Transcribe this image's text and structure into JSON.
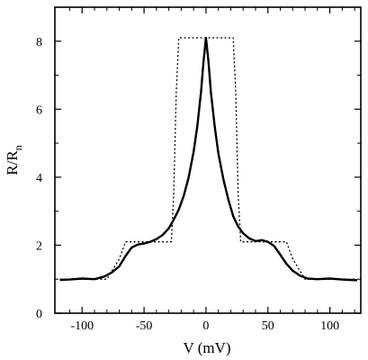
{
  "chart_data": {
    "type": "line",
    "title": "",
    "xlabel": "V (mV)",
    "ylabel_main": "R/R",
    "ylabel_sub": "n",
    "xlim": [
      -122,
      125
    ],
    "ylim": [
      0,
      9
    ],
    "x_ticks": [
      -100,
      -50,
      0,
      50,
      100
    ],
    "x_tick_labels": [
      "-100",
      "-50",
      "0",
      "50",
      "100"
    ],
    "y_ticks": [
      0,
      2,
      4,
      6,
      8
    ],
    "y_tick_labels": [
      "0",
      "2",
      "4",
      "6",
      "8"
    ],
    "grid": false,
    "series": [
      {
        "style": "solid",
        "color": "#000000",
        "x": [
          -118,
          -110,
          -100,
          -90,
          -82,
          -76,
          -70,
          -65,
          -60,
          -55,
          -50,
          -45,
          -40,
          -35,
          -30,
          -26,
          -22,
          -18,
          -14,
          -10,
          -7,
          -4,
          -2,
          0,
          2,
          4,
          7,
          10,
          14,
          18,
          22,
          26,
          30,
          35,
          40,
          45,
          50,
          55,
          60,
          65,
          70,
          76,
          82,
          90,
          100,
          110,
          122
        ],
        "y": [
          0.98,
          0.99,
          1.02,
          1.0,
          1.08,
          1.2,
          1.38,
          1.68,
          1.93,
          2.02,
          2.05,
          2.1,
          2.18,
          2.3,
          2.5,
          2.75,
          3.05,
          3.45,
          4.0,
          4.75,
          5.5,
          6.5,
          7.4,
          8.1,
          7.4,
          6.5,
          5.5,
          4.7,
          3.95,
          3.35,
          2.85,
          2.55,
          2.35,
          2.2,
          2.12,
          2.15,
          2.1,
          1.98,
          1.72,
          1.45,
          1.25,
          1.1,
          1.02,
          1.0,
          1.02,
          0.99,
          0.97
        ]
      },
      {
        "style": "dotted",
        "color": "#000000",
        "x": [
          -118,
          -80,
          -70,
          -65,
          -28,
          -26,
          -24,
          -22,
          22,
          24,
          26,
          28,
          65,
          70,
          80,
          122
        ],
        "y": [
          1.0,
          1.0,
          1.6,
          2.1,
          2.1,
          3.5,
          6.5,
          8.1,
          8.1,
          6.5,
          3.5,
          2.1,
          2.1,
          1.6,
          1.0,
          1.0
        ]
      }
    ]
  }
}
